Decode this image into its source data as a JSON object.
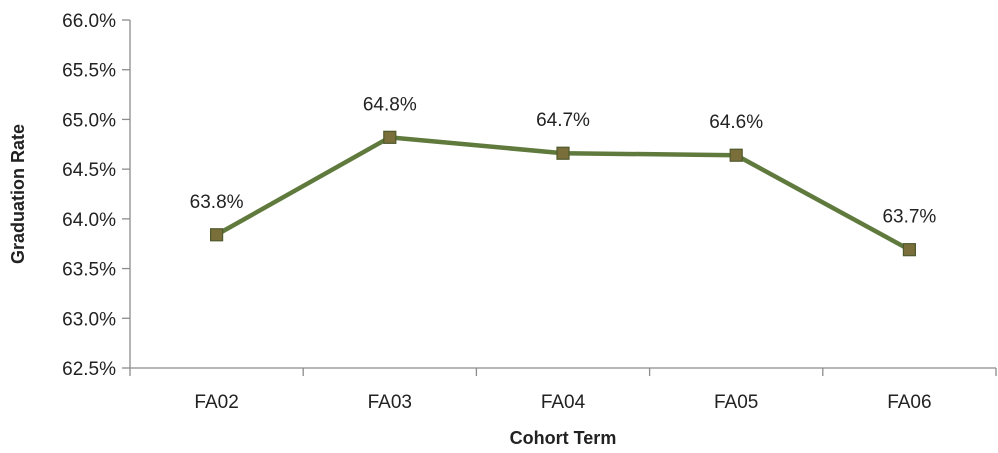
{
  "chart_data": {
    "type": "line",
    "categories": [
      "FA02",
      "FA03",
      "FA04",
      "FA05",
      "FA06"
    ],
    "series": [
      {
        "values": [
          63.84,
          64.82,
          64.66,
          64.64,
          63.69
        ],
        "data_labels": [
          "63.8%",
          "64.8%",
          "64.7%",
          "64.6%",
          "63.7%"
        ],
        "color": "#5f7a3c",
        "marker_color": "#7a6f3a"
      }
    ],
    "xlabel": "Cohort Term",
    "ylabel": "Graduation Rate",
    "ylim": [
      62.5,
      66.0
    ],
    "y_ticks": [
      62.5,
      63.0,
      63.5,
      64.0,
      64.5,
      65.0,
      65.5,
      66.0
    ],
    "y_tick_labels": [
      "62.5%",
      "63.0%",
      "63.5%",
      "64.0%",
      "64.5%",
      "65.0%",
      "65.5%",
      "66.0%"
    ],
    "grid": false,
    "legend": "none"
  }
}
